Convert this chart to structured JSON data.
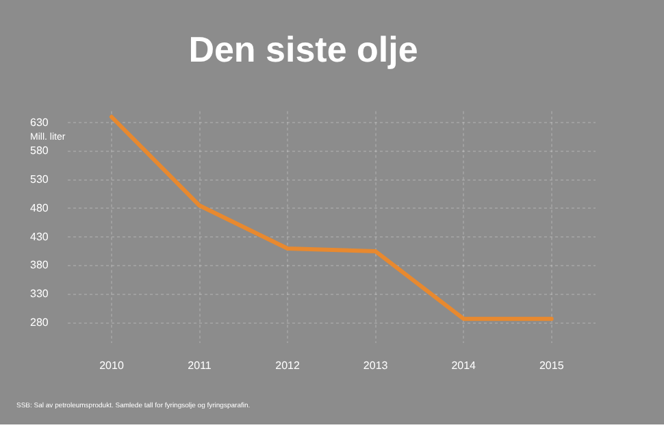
{
  "chart_data": {
    "type": "line",
    "title": "Den siste olje",
    "ylabel": "Mill. liter",
    "categories": [
      "2010",
      "2011",
      "2012",
      "2013",
      "2014",
      "2015"
    ],
    "series": [
      {
        "color": "#e8892f",
        "values": [
          640,
          485,
          410,
          405,
          287,
          287
        ]
      }
    ],
    "ylim": [
      245,
      650
    ],
    "yticks": [
      280,
      330,
      380,
      430,
      480,
      530,
      580,
      630
    ],
    "grid": true,
    "legend": false,
    "marker": "none",
    "line_style": "solid",
    "annotations": [
      "SSB: Sal av petroleumsprodukt. Samlede tall for fyringsolje og fyringsparafin."
    ]
  }
}
